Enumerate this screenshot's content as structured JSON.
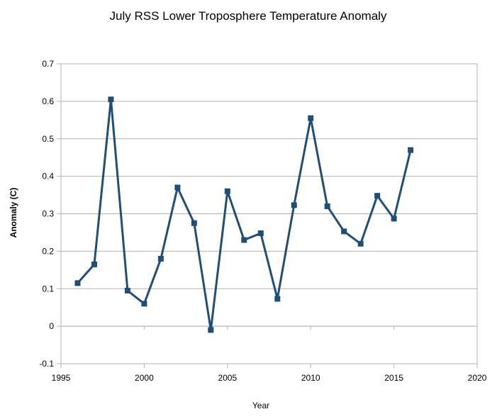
{
  "chart_data": {
    "type": "line",
    "title": "July RSS Lower Troposphere Temperature Anomaly",
    "xlabel": "Year",
    "ylabel": "Anomaly (C)",
    "xlim": [
      1995,
      2020
    ],
    "ylim": [
      -0.1,
      0.7
    ],
    "x_ticks": [
      "1995",
      "2000",
      "2005",
      "2010",
      "2015",
      "2020"
    ],
    "y_ticks": [
      "-0.1",
      "0",
      "0.1",
      "0.2",
      "0.3",
      "0.4",
      "0.5",
      "0.6",
      "0.7"
    ],
    "grid": true,
    "legend": "none",
    "line_color": "#1f4e79",
    "series": [
      {
        "x": [
          1996,
          1997,
          1998,
          1999,
          2000,
          2001,
          2002,
          2003,
          2004,
          2005,
          2006,
          2007,
          2008,
          2009,
          2010,
          2011,
          2012,
          2013,
          2014,
          2015,
          2016
        ],
        "values": [
          0.115,
          0.165,
          0.605,
          0.095,
          0.06,
          0.18,
          0.37,
          0.275,
          -0.01,
          0.36,
          0.23,
          0.248,
          0.073,
          0.323,
          0.555,
          0.32,
          0.253,
          0.22,
          0.348,
          0.287,
          0.47
        ]
      }
    ]
  }
}
